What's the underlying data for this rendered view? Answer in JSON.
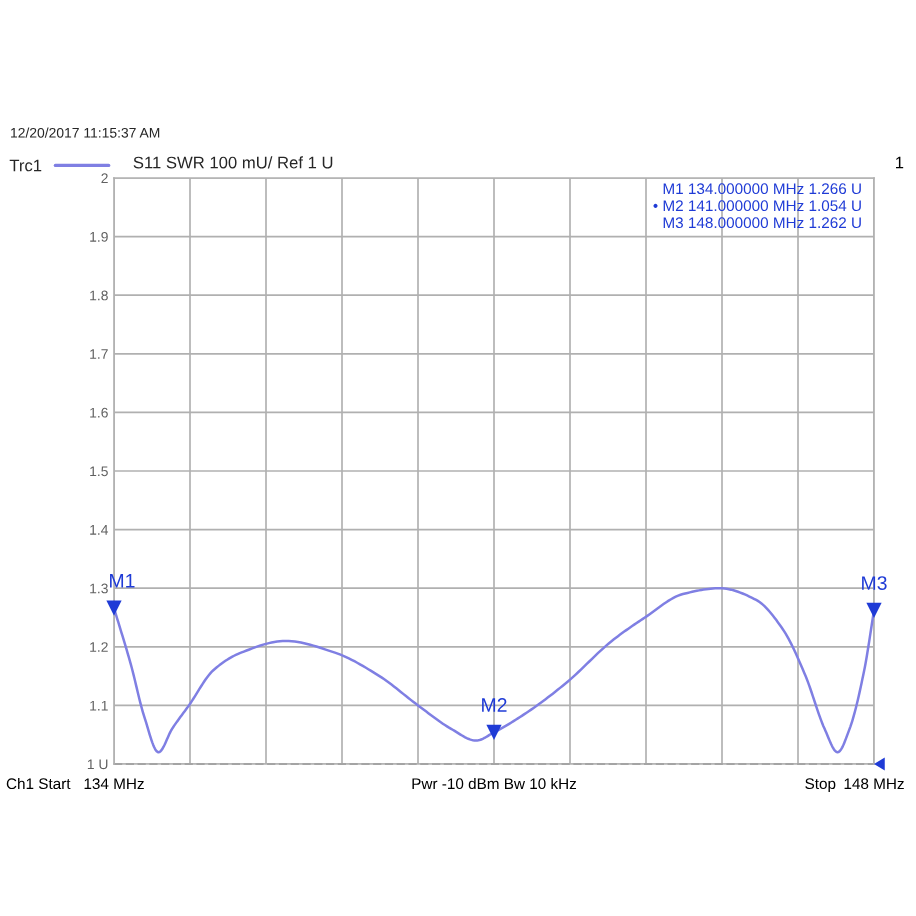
{
  "chart_data": {
    "type": "line",
    "title": "12/20/2017 11:15:37 AM",
    "subtitle": "S11 SWR 100 mU/ Ref 1 U",
    "series": [
      {
        "name": "Trc1",
        "color": "#7f7fe3",
        "x": [
          134.0,
          134.31,
          134.56,
          134.82,
          135.07,
          135.38,
          135.83,
          136.34,
          137.16,
          138.07,
          138.89,
          139.6,
          140.21,
          140.67,
          141.0,
          141.64,
          142.35,
          143.17,
          143.78,
          144.48,
          145.16,
          145.83,
          146.32,
          146.74,
          147.09,
          147.33,
          147.55,
          147.82,
          148.0
        ],
        "values": [
          1.266,
          1.17,
          1.08,
          1.02,
          1.06,
          1.1,
          1.16,
          1.19,
          1.21,
          1.19,
          1.15,
          1.1,
          1.06,
          1.04,
          1.054,
          1.09,
          1.14,
          1.21,
          1.25,
          1.29,
          1.3,
          1.28,
          1.23,
          1.15,
          1.06,
          1.02,
          1.06,
          1.16,
          1.262
        ]
      },
      {
        "type": "scatter",
        "color": "#1f3bd6",
        "marker": "triangle",
        "x": [
          134,
          141,
          148
        ],
        "values": [
          1.266,
          1.054,
          1.262
        ]
      }
    ],
    "xlim": [
      134,
      148
    ],
    "xticks": [
      {
        "value": 134,
        "label": "134 MHz"
      },
      {
        "value": 135.4,
        "label": null
      },
      {
        "value": 136.8,
        "label": null
      },
      {
        "value": 138.2,
        "label": null
      },
      {
        "value": 139.6,
        "label": null
      },
      {
        "value": 141,
        "label": null
      },
      {
        "value": 142.4,
        "label": null
      },
      {
        "value": 143.8,
        "label": null
      },
      {
        "value": 145.2,
        "label": null
      },
      {
        "value": 146.6,
        "label": null
      },
      {
        "value": 148,
        "label": "148 MHz"
      }
    ],
    "ylim": [
      1,
      2
    ],
    "yticks": [
      {
        "value": 1,
        "label": "1 U"
      },
      1.1,
      1.2,
      1.3,
      1.4,
      1.5,
      1.6,
      1.7,
      1.8,
      1.9,
      2
    ],
    "grid": true,
    "legend": "top left",
    "ref_lines": [
      {
        "axis": "y",
        "value": 1,
        "color": "#808080",
        "line_style": "dashed"
      }
    ],
    "annotations": [
      "1",
      "M1 134.000000 MHz 1.266 U",
      "• M2 141.000000 MHz 1.054 U",
      "M3 148.000000 MHz 1.262 U",
      {
        "text": "M1",
        "x": 134,
        "y": 1.266
      },
      {
        "text": "M2",
        "x": 141,
        "y": 1.054
      },
      {
        "text": "M3",
        "x": 148,
        "y": 1.262
      },
      "Ch1 Start",
      "Pwr -10 dBm Bw 10 kHz",
      "Stop"
    ]
  }
}
